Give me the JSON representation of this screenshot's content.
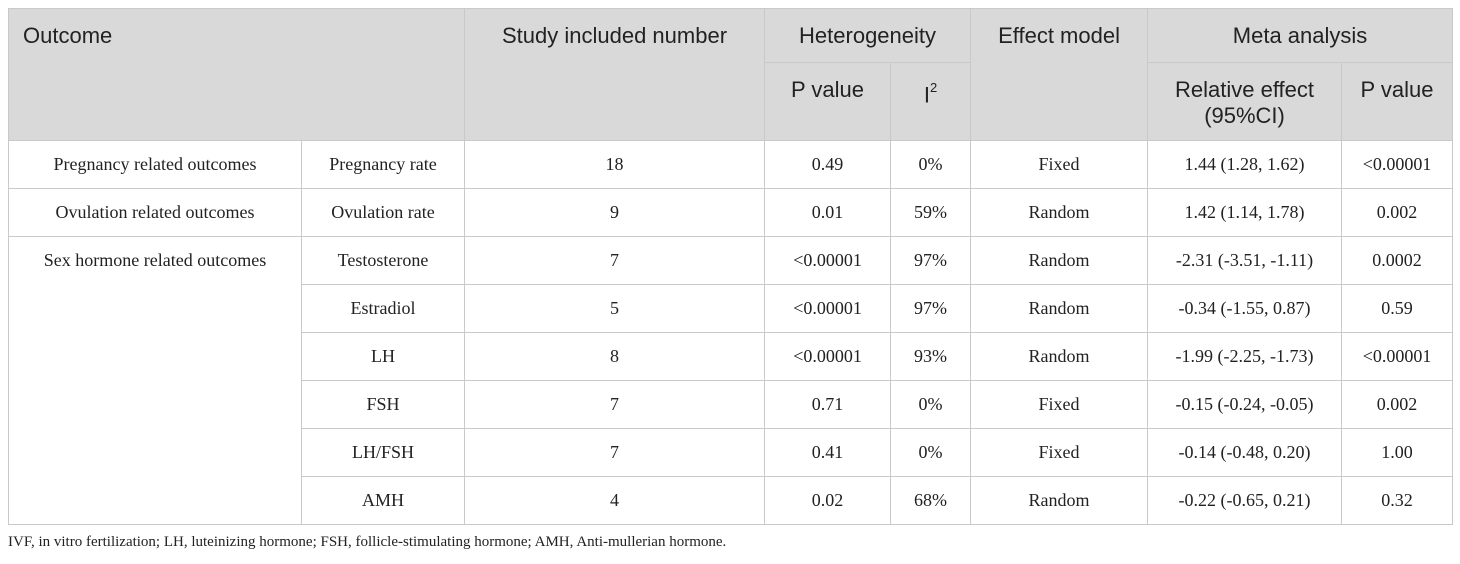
{
  "header": {
    "outcome": "Outcome",
    "study_included_number": "Study included number",
    "heterogeneity": "Heterogeneity",
    "p_value": "P value",
    "i2_base": "I",
    "i2_sup": "2",
    "effect_model": "Effect model",
    "meta_analysis": "Meta analysis",
    "relative_effect_line1": "Relative effect",
    "relative_effect_line2": "(95%CI)",
    "meta_p_value": "P value"
  },
  "groups": [
    {
      "category": "Pregnancy related outcomes",
      "rows": [
        {
          "outcome": "Pregnancy rate",
          "n": "18",
          "het_p": "0.49",
          "i2": "0%",
          "model": "Fixed",
          "effect": "1.44 (1.28, 1.62)",
          "p": "<0.00001"
        }
      ]
    },
    {
      "category": "Ovulation related outcomes",
      "rows": [
        {
          "outcome": "Ovulation rate",
          "n": "9",
          "het_p": "0.01",
          "i2": "59%",
          "model": "Random",
          "effect": "1.42 (1.14, 1.78)",
          "p": "0.002"
        }
      ]
    },
    {
      "category": "Sex hormone related outcomes",
      "rows": [
        {
          "outcome": "Testosterone",
          "n": "7",
          "het_p": "<0.00001",
          "i2": "97%",
          "model": "Random",
          "effect": "-2.31 (-3.51, -1.11)",
          "p": "0.0002"
        },
        {
          "outcome": "Estradiol",
          "n": "5",
          "het_p": "<0.00001",
          "i2": "97%",
          "model": "Random",
          "effect": "-0.34 (-1.55, 0.87)",
          "p": "0.59"
        },
        {
          "outcome": "LH",
          "n": "8",
          "het_p": "<0.00001",
          "i2": "93%",
          "model": "Random",
          "effect": "-1.99 (-2.25, -1.73)",
          "p": "<0.00001"
        },
        {
          "outcome": "FSH",
          "n": "7",
          "het_p": "0.71",
          "i2": "0%",
          "model": "Fixed",
          "effect": "-0.15 (-0.24, -0.05)",
          "p": "0.002"
        },
        {
          "outcome": "LH/FSH",
          "n": "7",
          "het_p": "0.41",
          "i2": "0%",
          "model": "Fixed",
          "effect": "-0.14 (-0.48, 0.20)",
          "p": "1.00"
        },
        {
          "outcome": "AMH",
          "n": "4",
          "het_p": "0.02",
          "i2": "68%",
          "model": "Random",
          "effect": "-0.22 (-0.65, 0.21)",
          "p": "0.32"
        }
      ]
    }
  ],
  "footnote": "IVF, in vitro fertilization; LH, luteinizing hormone; FSH, follicle-stimulating hormone; AMH, Anti-mullerian hormone."
}
